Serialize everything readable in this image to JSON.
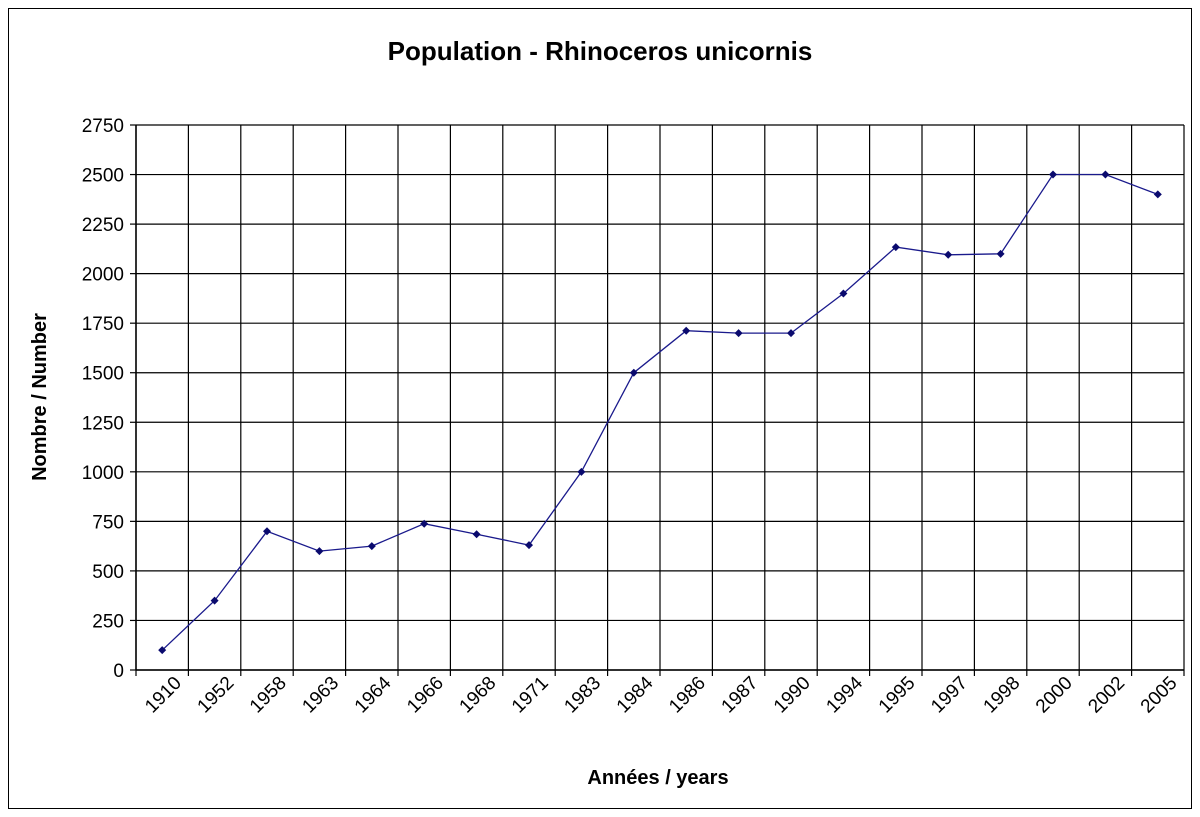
{
  "chart_data": {
    "type": "line",
    "title": "Population - Rhinoceros unicornis",
    "xlabel": "Années / years",
    "ylabel": "Nombre /  Number",
    "categories": [
      "1910",
      "1952",
      "1958",
      "1963",
      "1964",
      "1966",
      "1968",
      "1971",
      "1983",
      "1984",
      "1986",
      "1987",
      "1990",
      "1994",
      "1995",
      "1997",
      "1998",
      "2000",
      "2002",
      "2005"
    ],
    "series": [
      {
        "values": [
          100,
          350,
          700,
          600,
          625,
          738,
          685,
          630,
          1000,
          1500,
          1712,
          1700,
          1700,
          1900,
          2134,
          2095,
          2100,
          2500,
          2500,
          2400
        ],
        "color": "#1a1a8c"
      }
    ],
    "ylim": [
      0,
      2750
    ],
    "yticks": [
      0,
      250,
      500,
      750,
      1000,
      1250,
      1500,
      1750,
      2000,
      2250,
      2500,
      2750
    ],
    "grid": true,
    "legend": "none"
  }
}
